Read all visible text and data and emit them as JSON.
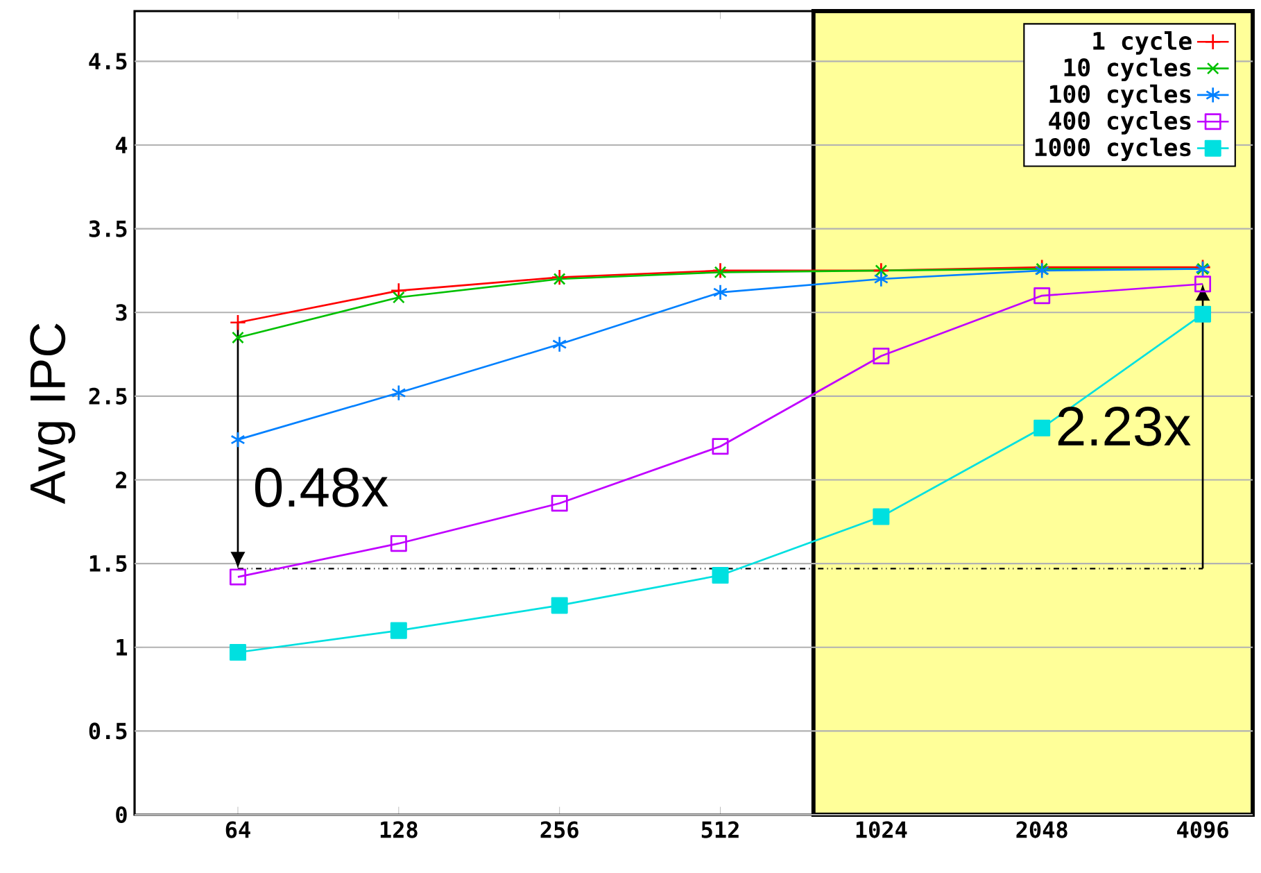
{
  "chart_data": {
    "type": "line",
    "ylabel": "Avg IPC",
    "x": [
      64,
      128,
      256,
      512,
      1024,
      2048,
      4096
    ],
    "series": [
      {
        "name": "1 cycle",
        "color": "#ff0000",
        "marker": "plus",
        "values": [
          2.94,
          3.13,
          3.21,
          3.25,
          3.25,
          3.27,
          3.27
        ]
      },
      {
        "name": "10 cycles",
        "color": "#00c000",
        "marker": "x",
        "values": [
          2.85,
          3.09,
          3.2,
          3.24,
          3.25,
          3.26,
          3.26
        ]
      },
      {
        "name": "100 cycles",
        "color": "#0080ff",
        "marker": "cross",
        "values": [
          2.24,
          2.52,
          2.81,
          3.12,
          3.2,
          3.25,
          3.26
        ]
      },
      {
        "name": "400 cycles",
        "color": "#c000ff",
        "marker": "square",
        "values": [
          1.42,
          1.62,
          1.86,
          2.2,
          2.74,
          3.1,
          3.17
        ]
      },
      {
        "name": "1000 cycles",
        "color": "#00e0e0",
        "marker": "square_filled",
        "values": [
          0.97,
          1.1,
          1.25,
          1.43,
          1.78,
          2.31,
          2.99
        ]
      }
    ],
    "log": "x",
    "xlim": [
      41,
      5080
    ],
    "xticks": [
      64,
      128,
      256,
      512,
      1024,
      2048,
      4096
    ],
    "ylim": [
      0,
      4.8
    ],
    "yticks": [
      0,
      0.5,
      1,
      1.5,
      2,
      2.5,
      3,
      3.5,
      4,
      4.5
    ],
    "grid": "y",
    "legend": "top right",
    "line_style": "solid",
    "ref_lines": [
      {
        "axis": "y",
        "value": 1.47,
        "line_style": "dashed",
        "color": "#000000"
      }
    ],
    "bands": [
      {
        "axis": "x",
        "from": 765,
        "to": 5080,
        "color": "#ffff99"
      }
    ],
    "annotations": [
      "0.48x",
      "2.23x"
    ]
  }
}
